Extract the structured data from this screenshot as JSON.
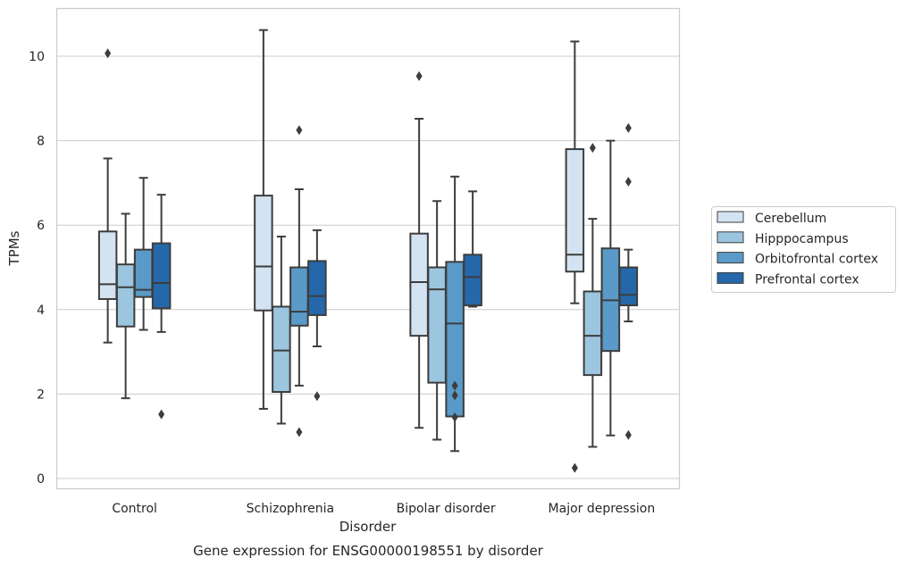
{
  "chart_data": {
    "type": "box",
    "title": "Gene expression for ENSG00000198551 by disorder",
    "xlabel": "Disorder",
    "ylabel": "TPMs",
    "ylim": [
      -0.25,
      11.2
    ],
    "yticks": [
      0,
      2,
      4,
      6,
      8,
      10
    ],
    "grid": "horizontal",
    "legend_position": "right",
    "categories": [
      "Control",
      "Schizophrenia",
      "Bipolar disorder",
      "Major depression"
    ],
    "series": [
      {
        "name": "Cerebellum",
        "color": "#d3e3f1",
        "boxes": [
          {
            "whislo": 3.22,
            "q1": 4.25,
            "med": 4.6,
            "q3": 5.85,
            "whishi": 7.58,
            "fliers": [
              10.07
            ]
          },
          {
            "whislo": 1.65,
            "q1": 3.98,
            "med": 5.02,
            "q3": 6.7,
            "whishi": 10.62,
            "fliers": []
          },
          {
            "whislo": 1.2,
            "q1": 3.38,
            "med": 4.65,
            "q3": 5.8,
            "whishi": 8.52,
            "fliers": [
              9.53
            ]
          },
          {
            "whislo": 4.15,
            "q1": 4.9,
            "med": 5.3,
            "q3": 7.8,
            "whishi": 10.35,
            "fliers": [
              0.25
            ]
          }
        ]
      },
      {
        "name": "Hipppocampus",
        "color": "#9cc5df",
        "boxes": [
          {
            "whislo": 1.9,
            "q1": 3.6,
            "med": 4.53,
            "q3": 5.07,
            "whishi": 6.27,
            "fliers": []
          },
          {
            "whislo": 1.3,
            "q1": 2.05,
            "med": 3.03,
            "q3": 4.07,
            "whishi": 5.73,
            "fliers": []
          },
          {
            "whislo": 0.92,
            "q1": 2.27,
            "med": 4.48,
            "q3": 5.0,
            "whishi": 6.57,
            "fliers": []
          },
          {
            "whislo": 0.75,
            "q1": 2.45,
            "med": 3.38,
            "q3": 4.43,
            "whishi": 6.15,
            "fliers": [
              7.83
            ]
          }
        ]
      },
      {
        "name": "Orbitofrontal cortex",
        "color": "#5a9ac8",
        "boxes": [
          {
            "whislo": 3.52,
            "q1": 4.3,
            "med": 4.47,
            "q3": 5.42,
            "whishi": 7.12,
            "fliers": []
          },
          {
            "whislo": 2.2,
            "q1": 3.62,
            "med": 3.95,
            "q3": 5.0,
            "whishi": 6.85,
            "fliers": [
              8.25,
              1.1
            ]
          },
          {
            "whislo": 0.65,
            "q1": 1.47,
            "med": 3.67,
            "q3": 5.13,
            "whishi": 7.15,
            "fliers": [
              2.2,
              1.97,
              1.45
            ]
          },
          {
            "whislo": 1.02,
            "q1": 3.02,
            "med": 4.22,
            "q3": 5.45,
            "whishi": 8.0,
            "fliers": []
          }
        ]
      },
      {
        "name": "Prefrontal cortex",
        "color": "#2568aa",
        "boxes": [
          {
            "whislo": 3.47,
            "q1": 4.03,
            "med": 4.63,
            "q3": 5.57,
            "whishi": 6.72,
            "fliers": [
              1.52
            ]
          },
          {
            "whislo": 3.13,
            "q1": 3.87,
            "med": 4.32,
            "q3": 5.15,
            "whishi": 5.88,
            "fliers": [
              1.95
            ]
          },
          {
            "whislo": 4.07,
            "q1": 4.1,
            "med": 4.77,
            "q3": 5.3,
            "whishi": 6.8,
            "fliers": []
          },
          {
            "whislo": 3.72,
            "q1": 4.1,
            "med": 4.35,
            "q3": 5.0,
            "whishi": 5.42,
            "fliers": [
              8.3,
              7.03,
              1.03
            ]
          }
        ]
      }
    ]
  }
}
